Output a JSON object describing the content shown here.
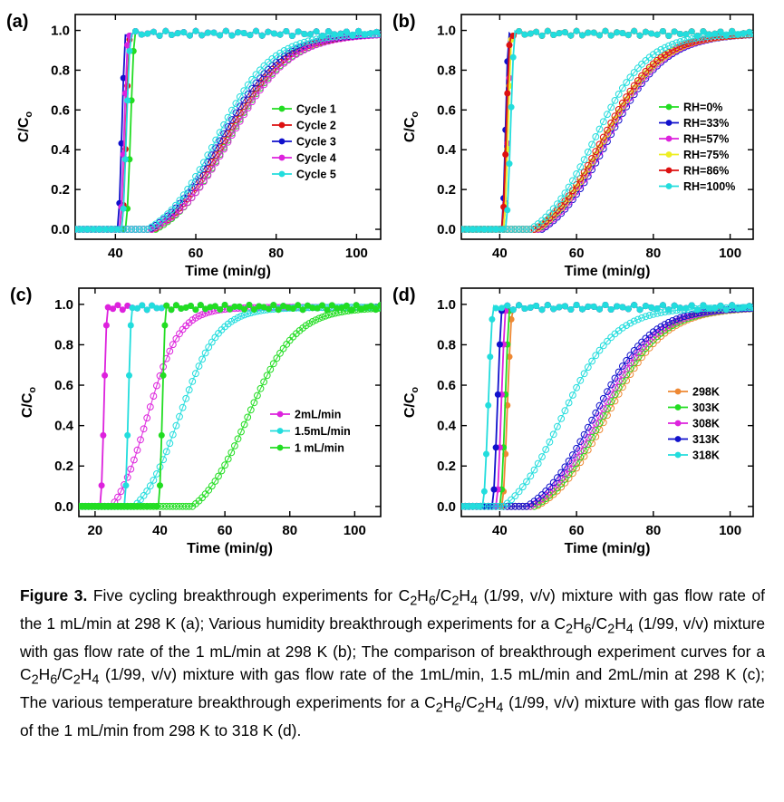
{
  "chart_data": [
    {
      "type": "scatter",
      "panel_label": "(a)",
      "xlabel": "Time (min/g)",
      "ylabel": "C/C",
      "ylabel_sub": "o",
      "xlim": [
        30,
        106
      ],
      "ylim": [
        -0.05,
        1.08
      ],
      "xticks": [
        40,
        60,
        80,
        100
      ],
      "yticks": [
        0.0,
        0.2,
        0.4,
        0.6,
        0.8,
        1.0
      ],
      "grid": false,
      "legend_position": "center-right",
      "series": [
        {
          "name": "Cycle 1",
          "color": "#22dd22",
          "ethane": {
            "start": 42.5,
            "span": 2.5
          },
          "ethylene": {
            "start": 50,
            "mid": 68,
            "scale": 7.5
          }
        },
        {
          "name": "Cycle 2",
          "color": "#dd1111",
          "ethane": {
            "start": 41.5,
            "span": 2.3
          },
          "ethylene": {
            "start": 49.5,
            "mid": 67,
            "scale": 7.5
          }
        },
        {
          "name": "Cycle 3",
          "color": "#1111cc",
          "ethane": {
            "start": 40.5,
            "span": 2.2
          },
          "ethylene": {
            "start": 48.5,
            "mid": 66,
            "scale": 7.5
          }
        },
        {
          "name": "Cycle 4",
          "color": "#dd22dd",
          "ethane": {
            "start": 41,
            "span": 2.4
          },
          "ethylene": {
            "start": 49,
            "mid": 68.5,
            "scale": 7.5
          }
        },
        {
          "name": "Cycle 5",
          "color": "#22dddd",
          "ethane": {
            "start": 41.5,
            "span": 2.5
          },
          "ethylene": {
            "start": 48,
            "mid": 65,
            "scale": 7
          }
        }
      ]
    },
    {
      "type": "scatter",
      "panel_label": "(b)",
      "xlabel": "Time (min/g)",
      "ylabel": "C/C",
      "ylabel_sub": "o",
      "xlim": [
        30,
        106
      ],
      "ylim": [
        -0.05,
        1.08
      ],
      "xticks": [
        40,
        60,
        80,
        100
      ],
      "yticks": [
        0.0,
        0.2,
        0.4,
        0.6,
        0.8,
        1.0
      ],
      "grid": false,
      "legend_position": "center-right",
      "series": [
        {
          "name": "RH=0%",
          "color": "#22dd22",
          "ethane": {
            "start": 41,
            "span": 2.2
          },
          "ethylene": {
            "start": 50,
            "mid": 67,
            "scale": 7.5
          }
        },
        {
          "name": "RH=33%",
          "color": "#1111cc",
          "ethane": {
            "start": 40.5,
            "span": 2.0
          },
          "ethylene": {
            "start": 51,
            "mid": 68,
            "scale": 7.5
          }
        },
        {
          "name": "RH=57%",
          "color": "#dd22dd",
          "ethane": {
            "start": 41,
            "span": 2.2
          },
          "ethylene": {
            "start": 50.5,
            "mid": 67.5,
            "scale": 7.5
          }
        },
        {
          "name": "RH=75%",
          "color": "#eeee22",
          "ethane": {
            "start": 41,
            "span": 2.3
          },
          "ethylene": {
            "start": 49.5,
            "mid": 67,
            "scale": 7.5
          }
        },
        {
          "name": "RH=86%",
          "color": "#dd1111",
          "ethane": {
            "start": 40.5,
            "span": 2.4
          },
          "ethylene": {
            "start": 49,
            "mid": 66.5,
            "scale": 7.5
          }
        },
        {
          "name": "RH=100%",
          "color": "#22dddd",
          "ethane": {
            "start": 41.5,
            "span": 2.6
          },
          "ethylene": {
            "start": 48,
            "mid": 64.5,
            "scale": 7
          }
        }
      ]
    },
    {
      "type": "scatter",
      "panel_label": "(c)",
      "xlabel": "Time (min/g)",
      "ylabel": "C/C",
      "ylabel_sub": "o",
      "xlim": [
        15,
        108
      ],
      "ylim": [
        -0.05,
        1.08
      ],
      "xticks": [
        20,
        40,
        60,
        80,
        100
      ],
      "yticks": [
        0.0,
        0.2,
        0.4,
        0.6,
        0.8,
        1.0
      ],
      "grid": false,
      "legend_position": "center-right",
      "series": [
        {
          "name": "2mL/min",
          "color": "#dd22dd",
          "ethane": {
            "start": 21.5,
            "span": 2.5
          },
          "ethylene": {
            "start": 25,
            "mid": 36,
            "scale": 5
          }
        },
        {
          "name": "1.5mL/min",
          "color": "#22dddd",
          "ethane": {
            "start": 29,
            "span": 2.5
          },
          "ethylene": {
            "start": 32,
            "mid": 46,
            "scale": 6
          }
        },
        {
          "name": "1 mL/min",
          "color": "#22dd22",
          "ethane": {
            "start": 39.5,
            "span": 2.5
          },
          "ethylene": {
            "start": 50,
            "mid": 67,
            "scale": 7.5
          }
        }
      ]
    },
    {
      "type": "scatter",
      "panel_label": "(d)",
      "xlabel": "Time (min/g)",
      "ylabel": "C/C",
      "ylabel_sub": "o",
      "xlim": [
        30,
        106
      ],
      "ylim": [
        -0.05,
        1.08
      ],
      "xticks": [
        40,
        60,
        80,
        100
      ],
      "yticks": [
        0.0,
        0.2,
        0.4,
        0.6,
        0.8,
        1.0
      ],
      "grid": false,
      "legend_position": "center-right",
      "series": [
        {
          "name": "298K",
          "color": "#ee8833",
          "ethane": {
            "start": 40.5,
            "span": 3.0
          },
          "ethylene": {
            "start": 49.5,
            "mid": 68,
            "scale": 7.5
          }
        },
        {
          "name": "303K",
          "color": "#22dd22",
          "ethane": {
            "start": 40,
            "span": 2.8
          },
          "ethylene": {
            "start": 49,
            "mid": 67,
            "scale": 7.5
          }
        },
        {
          "name": "308K",
          "color": "#dd22dd",
          "ethane": {
            "start": 39,
            "span": 2.8
          },
          "ethylene": {
            "start": 48,
            "mid": 66,
            "scale": 7.5
          }
        },
        {
          "name": "313K",
          "color": "#1111cc",
          "ethane": {
            "start": 38,
            "span": 2.8
          },
          "ethylene": {
            "start": 47,
            "mid": 64.5,
            "scale": 7.5
          }
        },
        {
          "name": "318K",
          "color": "#22dddd",
          "ethane": {
            "start": 35.5,
            "span": 3.0
          },
          "ethylene": {
            "start": 41,
            "mid": 56,
            "scale": 7
          }
        }
      ]
    }
  ],
  "caption": {
    "lead": "Figure 3.",
    "parts": [
      " Five cycling breakthrough experiments for C",
      "2",
      "H",
      "6",
      "/C",
      "2",
      "H",
      "4",
      " (1/99, v/v) mixture with gas flow rate of the 1 mL/min at 298 K (a); Various humidity breakthrough experiments for a C",
      "2",
      "H",
      "6",
      "/C",
      "2",
      "H",
      "4",
      " (1/99, v/v) mixture with gas flow rate of the 1 mL/min at 298 K (b); The comparison of breakthrough experiment curves for a C",
      "2",
      "H",
      "6",
      "/C",
      "2",
      "H",
      "4",
      " (1/99, v/v) mixture with gas flow rate of the 1mL/min, 1.5 mL/min and 2mL/min at 298 K (c); The various temperature breakthrough experiments for a C",
      "2",
      "H",
      "6",
      "/C",
      "2",
      "H",
      "4",
      " (1/99, v/v) mixture with gas flow rate of the 1 mL/min from 298 K to 318 K (d)."
    ]
  }
}
